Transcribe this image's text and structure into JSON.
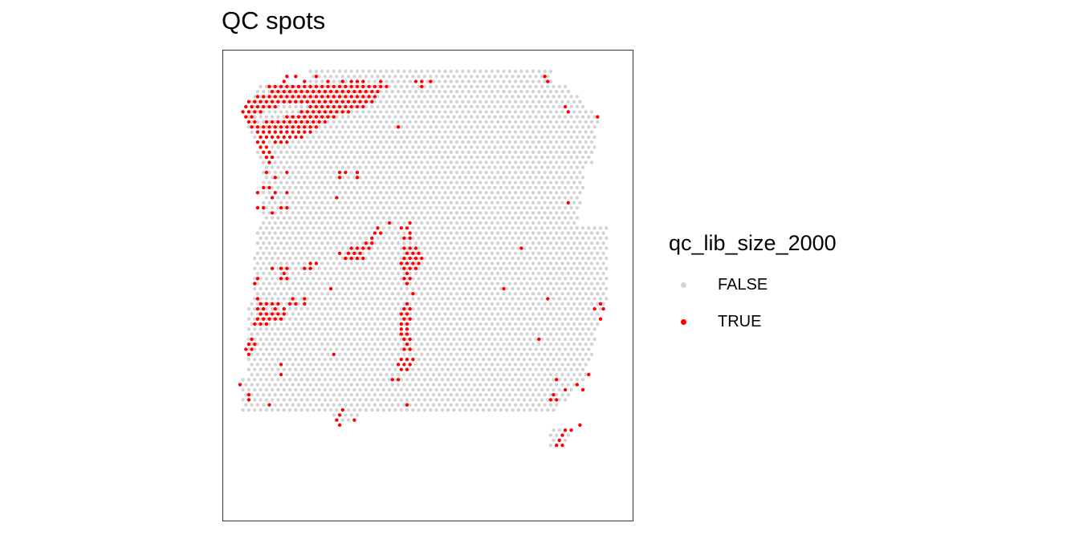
{
  "chart_data": {
    "type": "scatter",
    "title": "QC spots",
    "xlabel": "",
    "ylabel": "",
    "grid": false,
    "legend": {
      "title": "qc_lib_size_2000",
      "placement": "right",
      "entries": [
        {
          "label": "FALSE",
          "color": "#d3d3d3"
        },
        {
          "label": "TRUE",
          "color": "#ff0000"
        }
      ]
    },
    "xlim": [
      0,
      128
    ],
    "ylim": [
      0,
      78
    ],
    "tissue_shape": "grid of spots covering the tissue section, row 0 = top",
    "true_spots": [
      [
        16,
        1
      ],
      [
        19,
        1
      ],
      [
        26,
        1
      ],
      [
        104,
        1
      ],
      [
        15,
        2
      ],
      [
        22,
        2
      ],
      [
        30,
        2
      ],
      [
        35,
        2
      ],
      [
        38,
        2
      ],
      [
        40,
        2
      ],
      [
        42,
        2
      ],
      [
        48,
        2
      ],
      [
        60,
        2
      ],
      [
        62,
        2
      ],
      [
        65,
        2
      ],
      [
        105,
        2
      ],
      [
        10,
        3
      ],
      [
        12,
        3
      ],
      [
        14,
        3
      ],
      [
        16,
        3
      ],
      [
        18,
        3
      ],
      [
        20,
        3
      ],
      [
        22,
        3
      ],
      [
        24,
        3
      ],
      [
        26,
        3
      ],
      [
        28,
        3
      ],
      [
        30,
        3
      ],
      [
        32,
        3
      ],
      [
        34,
        3
      ],
      [
        36,
        3
      ],
      [
        38,
        3
      ],
      [
        40,
        3
      ],
      [
        42,
        3
      ],
      [
        44,
        3
      ],
      [
        46,
        3
      ],
      [
        48,
        3
      ],
      [
        50,
        3
      ],
      [
        62,
        3
      ],
      [
        11,
        4
      ],
      [
        13,
        4
      ],
      [
        15,
        4
      ],
      [
        17,
        4
      ],
      [
        19,
        4
      ],
      [
        21,
        4
      ],
      [
        23,
        4
      ],
      [
        25,
        4
      ],
      [
        27,
        4
      ],
      [
        29,
        4
      ],
      [
        31,
        4
      ],
      [
        33,
        4
      ],
      [
        35,
        4
      ],
      [
        37,
        4
      ],
      [
        39,
        4
      ],
      [
        41,
        4
      ],
      [
        43,
        4
      ],
      [
        45,
        4
      ],
      [
        47,
        4
      ],
      [
        6,
        5
      ],
      [
        8,
        5
      ],
      [
        10,
        5
      ],
      [
        12,
        5
      ],
      [
        14,
        5
      ],
      [
        16,
        5
      ],
      [
        18,
        5
      ],
      [
        20,
        5
      ],
      [
        22,
        5
      ],
      [
        24,
        5
      ],
      [
        26,
        5
      ],
      [
        28,
        5
      ],
      [
        30,
        5
      ],
      [
        32,
        5
      ],
      [
        34,
        5
      ],
      [
        36,
        5
      ],
      [
        38,
        5
      ],
      [
        40,
        5
      ],
      [
        42,
        5
      ],
      [
        44,
        5
      ],
      [
        46,
        5
      ],
      [
        3,
        6
      ],
      [
        5,
        6
      ],
      [
        7,
        6
      ],
      [
        9,
        6
      ],
      [
        11,
        6
      ],
      [
        13,
        6
      ],
      [
        15,
        6
      ],
      [
        17,
        6
      ],
      [
        19,
        6
      ],
      [
        21,
        6
      ],
      [
        23,
        6
      ],
      [
        25,
        6
      ],
      [
        27,
        6
      ],
      [
        29,
        6
      ],
      [
        31,
        6
      ],
      [
        33,
        6
      ],
      [
        35,
        6
      ],
      [
        37,
        6
      ],
      [
        39,
        6
      ],
      [
        41,
        6
      ],
      [
        43,
        6
      ],
      [
        45,
        6
      ],
      [
        2,
        7
      ],
      [
        4,
        7
      ],
      [
        6,
        7
      ],
      [
        8,
        7
      ],
      [
        10,
        7
      ],
      [
        12,
        7
      ],
      [
        24,
        7
      ],
      [
        26,
        7
      ],
      [
        28,
        7
      ],
      [
        30,
        7
      ],
      [
        32,
        7
      ],
      [
        34,
        7
      ],
      [
        36,
        7
      ],
      [
        38,
        7
      ],
      [
        40,
        7
      ],
      [
        42,
        7
      ],
      [
        111,
        7
      ],
      [
        1,
        8
      ],
      [
        3,
        8
      ],
      [
        5,
        8
      ],
      [
        7,
        8
      ],
      [
        21,
        8
      ],
      [
        23,
        8
      ],
      [
        25,
        8
      ],
      [
        27,
        8
      ],
      [
        29,
        8
      ],
      [
        31,
        8
      ],
      [
        33,
        8
      ],
      [
        35,
        8
      ],
      [
        37,
        8
      ],
      [
        112,
        8
      ],
      [
        2,
        9
      ],
      [
        4,
        9
      ],
      [
        16,
        9
      ],
      [
        18,
        9
      ],
      [
        20,
        9
      ],
      [
        22,
        9
      ],
      [
        24,
        9
      ],
      [
        26,
        9
      ],
      [
        28,
        9
      ],
      [
        30,
        9
      ],
      [
        32,
        9
      ],
      [
        122,
        9
      ],
      [
        3,
        10
      ],
      [
        5,
        10
      ],
      [
        9,
        10
      ],
      [
        11,
        10
      ],
      [
        13,
        10
      ],
      [
        15,
        10
      ],
      [
        17,
        10
      ],
      [
        19,
        10
      ],
      [
        21,
        10
      ],
      [
        23,
        10
      ],
      [
        25,
        10
      ],
      [
        27,
        10
      ],
      [
        29,
        10
      ],
      [
        4,
        11
      ],
      [
        6,
        11
      ],
      [
        8,
        11
      ],
      [
        10,
        11
      ],
      [
        12,
        11
      ],
      [
        14,
        11
      ],
      [
        16,
        11
      ],
      [
        18,
        11
      ],
      [
        20,
        11
      ],
      [
        22,
        11
      ],
      [
        24,
        11
      ],
      [
        26,
        11
      ],
      [
        54,
        11
      ],
      [
        6,
        12
      ],
      [
        8,
        12
      ],
      [
        10,
        12
      ],
      [
        12,
        12
      ],
      [
        14,
        12
      ],
      [
        16,
        12
      ],
      [
        18,
        12
      ],
      [
        20,
        12
      ],
      [
        22,
        12
      ],
      [
        24,
        12
      ],
      [
        7,
        13
      ],
      [
        9,
        13
      ],
      [
        11,
        13
      ],
      [
        13,
        13
      ],
      [
        15,
        13
      ],
      [
        17,
        13
      ],
      [
        19,
        13
      ],
      [
        21,
        13
      ],
      [
        6,
        14
      ],
      [
        8,
        14
      ],
      [
        12,
        14
      ],
      [
        14,
        14
      ],
      [
        16,
        14
      ],
      [
        7,
        15
      ],
      [
        9,
        15
      ],
      [
        8,
        16
      ],
      [
        10,
        16
      ],
      [
        9,
        17
      ],
      [
        11,
        17
      ],
      [
        10,
        18
      ],
      [
        9,
        20
      ],
      [
        16,
        20
      ],
      [
        34,
        20
      ],
      [
        36,
        20
      ],
      [
        40,
        20
      ],
      [
        12,
        21
      ],
      [
        34,
        21
      ],
      [
        40,
        21
      ],
      [
        8,
        23
      ],
      [
        10,
        23
      ],
      [
        6,
        24
      ],
      [
        12,
        24
      ],
      [
        16,
        24
      ],
      [
        11,
        25
      ],
      [
        33,
        25
      ],
      [
        112,
        26
      ],
      [
        6,
        27
      ],
      [
        8,
        27
      ],
      [
        14,
        27
      ],
      [
        16,
        27
      ],
      [
        11,
        28
      ],
      [
        51,
        30
      ],
      [
        58,
        30
      ],
      [
        47,
        31
      ],
      [
        55,
        31
      ],
      [
        57,
        31
      ],
      [
        46,
        32
      ],
      [
        48,
        32
      ],
      [
        58,
        32
      ],
      [
        45,
        33
      ],
      [
        56,
        33
      ],
      [
        58,
        33
      ],
      [
        43,
        34
      ],
      [
        45,
        34
      ],
      [
        38,
        35
      ],
      [
        40,
        35
      ],
      [
        42,
        35
      ],
      [
        44,
        35
      ],
      [
        56,
        35
      ],
      [
        58,
        35
      ],
      [
        60,
        35
      ],
      [
        96,
        35
      ],
      [
        34,
        36
      ],
      [
        37,
        36
      ],
      [
        39,
        36
      ],
      [
        41,
        36
      ],
      [
        57,
        36
      ],
      [
        59,
        36
      ],
      [
        61,
        36
      ],
      [
        36,
        37
      ],
      [
        38,
        37
      ],
      [
        40,
        37
      ],
      [
        42,
        37
      ],
      [
        56,
        37
      ],
      [
        58,
        37
      ],
      [
        60,
        37
      ],
      [
        62,
        37
      ],
      [
        24,
        38
      ],
      [
        26,
        38
      ],
      [
        55,
        38
      ],
      [
        57,
        38
      ],
      [
        59,
        38
      ],
      [
        61,
        38
      ],
      [
        14,
        39
      ],
      [
        11,
        39
      ],
      [
        16,
        39
      ],
      [
        22,
        39
      ],
      [
        24,
        39
      ],
      [
        56,
        39
      ],
      [
        58,
        39
      ],
      [
        60,
        39
      ],
      [
        15,
        40
      ],
      [
        57,
        40
      ],
      [
        6,
        41
      ],
      [
        14,
        41
      ],
      [
        16,
        41
      ],
      [
        56,
        41
      ],
      [
        58,
        41
      ],
      [
        5,
        42
      ],
      [
        57,
        42
      ],
      [
        31,
        43
      ],
      [
        90,
        43
      ],
      [
        59,
        44
      ],
      [
        6,
        45
      ],
      [
        18,
        45
      ],
      [
        22,
        45
      ],
      [
        105,
        45
      ],
      [
        7,
        46
      ],
      [
        9,
        46
      ],
      [
        11,
        46
      ],
      [
        13,
        46
      ],
      [
        17,
        46
      ],
      [
        19,
        46
      ],
      [
        22,
        46
      ],
      [
        57,
        46
      ],
      [
        123,
        46
      ],
      [
        6,
        47
      ],
      [
        8,
        47
      ],
      [
        12,
        47
      ],
      [
        15,
        47
      ],
      [
        56,
        47
      ],
      [
        58,
        47
      ],
      [
        121,
        47
      ],
      [
        124,
        47
      ],
      [
        7,
        48
      ],
      [
        9,
        48
      ],
      [
        11,
        48
      ],
      [
        13,
        48
      ],
      [
        15,
        48
      ],
      [
        55,
        48
      ],
      [
        57,
        48
      ],
      [
        6,
        49
      ],
      [
        8,
        49
      ],
      [
        10,
        49
      ],
      [
        12,
        49
      ],
      [
        14,
        49
      ],
      [
        56,
        49
      ],
      [
        58,
        49
      ],
      [
        123,
        49
      ],
      [
        5,
        50
      ],
      [
        7,
        50
      ],
      [
        9,
        50
      ],
      [
        55,
        50
      ],
      [
        57,
        50
      ],
      [
        55,
        51
      ],
      [
        57,
        51
      ],
      [
        55,
        52
      ],
      [
        57,
        52
      ],
      [
        4,
        53
      ],
      [
        56,
        53
      ],
      [
        58,
        53
      ],
      [
        102,
        53
      ],
      [
        3,
        54
      ],
      [
        5,
        54
      ],
      [
        57,
        54
      ],
      [
        2,
        55
      ],
      [
        4,
        55
      ],
      [
        56,
        55
      ],
      [
        58,
        55
      ],
      [
        3,
        56
      ],
      [
        32,
        56
      ],
      [
        55,
        57
      ],
      [
        57,
        57
      ],
      [
        59,
        57
      ],
      [
        14,
        58
      ],
      [
        54,
        58
      ],
      [
        56,
        58
      ],
      [
        58,
        58
      ],
      [
        55,
        59
      ],
      [
        57,
        59
      ],
      [
        14,
        60
      ],
      [
        119,
        60
      ],
      [
        52,
        61
      ],
      [
        54,
        61
      ],
      [
        108,
        61
      ],
      [
        0,
        62
      ],
      [
        115,
        62
      ],
      [
        117,
        63
      ],
      [
        111,
        63
      ],
      [
        3,
        64
      ],
      [
        107,
        64
      ],
      [
        3,
        65
      ],
      [
        106,
        65
      ],
      [
        108,
        65
      ],
      [
        10,
        66
      ],
      [
        57,
        66
      ],
      [
        35,
        67
      ],
      [
        34,
        68
      ],
      [
        33,
        69
      ],
      [
        39,
        69
      ],
      [
        34,
        70
      ],
      [
        116,
        70
      ],
      [
        111,
        71
      ],
      [
        113,
        71
      ],
      [
        110,
        72
      ],
      [
        109,
        73
      ],
      [
        108,
        74
      ],
      [
        110,
        74
      ]
    ]
  }
}
